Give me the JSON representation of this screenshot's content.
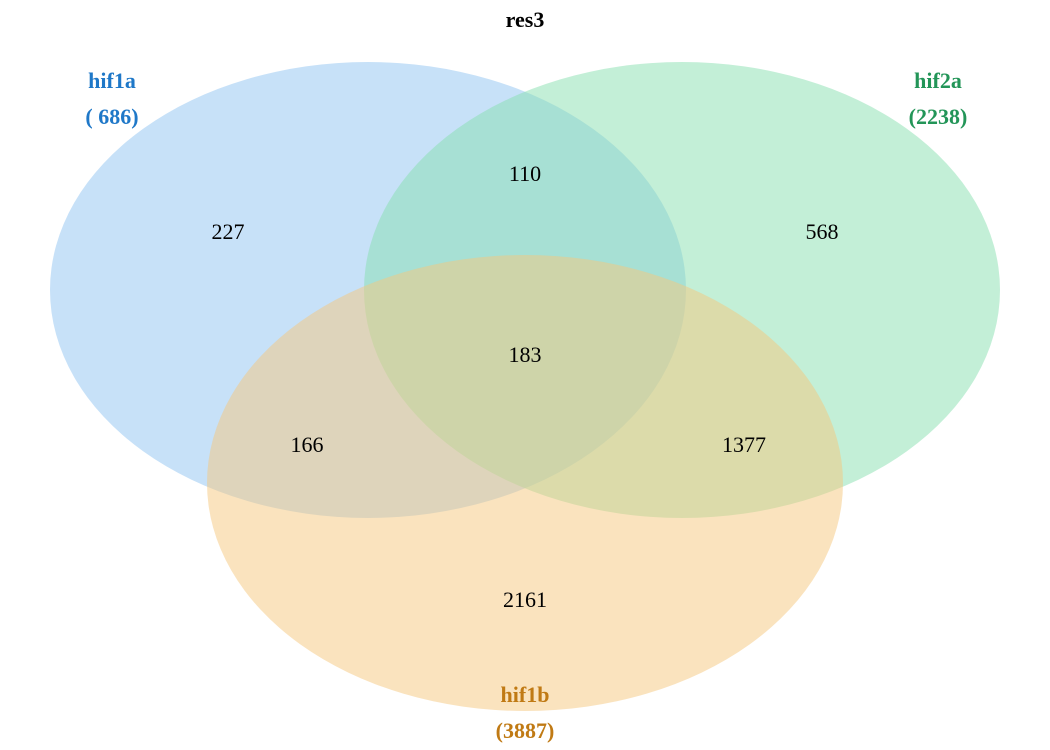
{
  "title": "res3",
  "sets": [
    {
      "key": "hif1a",
      "name": "hif1a",
      "count": "( 686)",
      "fill": "#90c4f2",
      "text_color": "#1f78c8"
    },
    {
      "key": "hif2a",
      "name": "hif2a",
      "count": "(2238)",
      "fill": "#88dfb0",
      "text_color": "#239558"
    },
    {
      "key": "hif1b",
      "name": "hif1b",
      "count": "(3887)",
      "fill": "#f5c77e",
      "text_color": "#c07a14"
    }
  ],
  "regions": {
    "hif1a_only": "227",
    "hif2a_only": "568",
    "hif1b_only": "2161",
    "hif1a_hif2a": "110",
    "hif1a_hif1b": "166",
    "hif2a_hif1b": "1377",
    "all_three": "183"
  }
}
